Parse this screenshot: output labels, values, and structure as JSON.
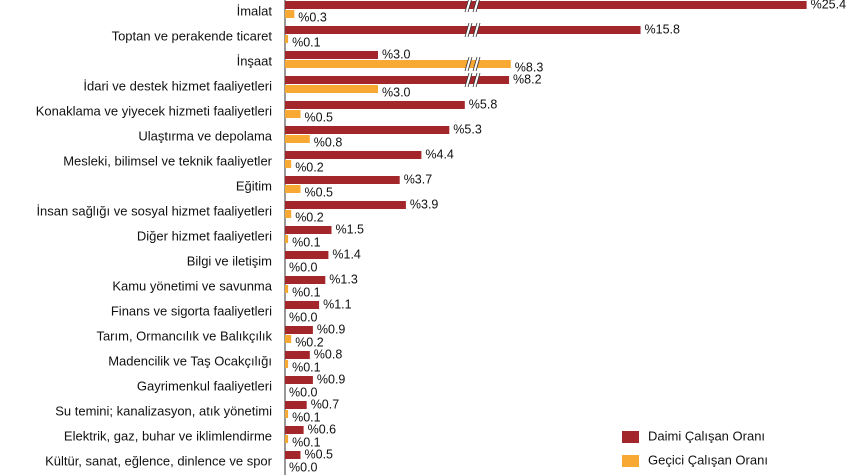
{
  "chart_data": {
    "type": "bar",
    "orientation": "horizontal",
    "categories": [
      "İmalat",
      "Toptan ve perakende ticaret",
      "İnşaat",
      "İdari ve destek hizmet faaliyetleri",
      "Konaklama ve yiyecek hizmeti faaliyetleri",
      "Ulaştırma ve depolama",
      "Mesleki, bilimsel ve teknik faaliyetler",
      "Eğitim",
      "İnsan sağlığı ve sosyal hizmet faaliyetleri",
      "Diğer hizmet faaliyetleri",
      "Bilgi ve iletişim",
      "Kamu yönetimi ve savunma",
      "Finans ve sigorta faaliyetleri",
      "Tarım, Ormancılık ve Balıkçılık",
      "Madencilik ve Taş Ocakçılığı",
      "Gayrimenkul faaliyetleri",
      "Su temini; kanalizasyon, atık yönetimi",
      "Elektrik, gaz, buhar ve iklimlendirme",
      "Kültür, sanat, eğlence, dinlence ve spor"
    ],
    "series": [
      {
        "name": "Daimi Çalışan Oranı",
        "color": "#a3262a",
        "values": [
          25.4,
          15.8,
          3.0,
          8.2,
          5.8,
          5.3,
          4.4,
          3.7,
          3.9,
          1.5,
          1.4,
          1.3,
          1.1,
          0.9,
          0.8,
          0.9,
          0.7,
          0.6,
          0.5
        ],
        "value_labels": [
          "%25.4",
          "%15.8",
          "%3.0",
          "%8.2",
          "%5.8",
          "%5.3",
          "%4.4",
          "%3.7",
          "%3.9",
          "%1.5",
          "%1.4",
          "%1.3",
          "%1.1",
          "%0.9",
          "%0.8",
          "%0.9",
          "%0.7",
          "%0.6",
          "%0.5"
        ]
      },
      {
        "name": "Geçici Çalışan Oranı",
        "color": "#f7a934",
        "values": [
          0.3,
          0.1,
          8.3,
          3.0,
          0.5,
          0.8,
          0.2,
          0.5,
          0.2,
          0.1,
          0.0,
          0.1,
          0.0,
          0.2,
          0.1,
          0.0,
          0.1,
          0.1,
          0.0
        ],
        "value_labels": [
          "%0.3",
          "%0.1",
          "%8.3",
          "%3.0",
          "%0.5",
          "%0.8",
          "%0.2",
          "%0.5",
          "%0.2",
          "%0.1",
          "%0.0",
          "%0.1",
          "%0.0",
          "%0.2",
          "%0.1",
          "%0.0",
          "%0.1",
          "%0.1",
          "%0.0"
        ]
      }
    ],
    "legend": "lower right",
    "axis_break": true
  }
}
